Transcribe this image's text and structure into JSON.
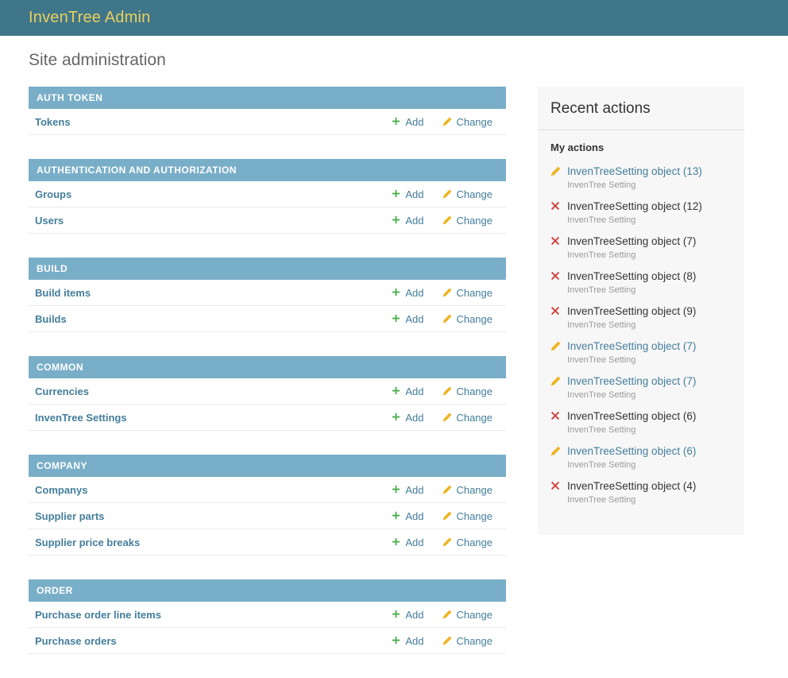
{
  "header": {
    "title": "InvenTree Admin"
  },
  "page": {
    "title": "Site administration"
  },
  "actions": {
    "add_label": "Add",
    "change_label": "Change"
  },
  "icons": {
    "add": "plus-icon",
    "change": "pencil-icon",
    "delete": "x-icon"
  },
  "modules": [
    {
      "title": "AUTH TOKEN",
      "rows": [
        {
          "label": "Tokens"
        }
      ]
    },
    {
      "title": "AUTHENTICATION AND AUTHORIZATION",
      "rows": [
        {
          "label": "Groups"
        },
        {
          "label": "Users"
        }
      ]
    },
    {
      "title": "BUILD",
      "rows": [
        {
          "label": "Build items"
        },
        {
          "label": "Builds"
        }
      ]
    },
    {
      "title": "COMMON",
      "rows": [
        {
          "label": "Currencies"
        },
        {
          "label": "InvenTree Settings"
        }
      ]
    },
    {
      "title": "COMPANY",
      "rows": [
        {
          "label": "Companys"
        },
        {
          "label": "Supplier parts"
        },
        {
          "label": "Supplier price breaks"
        }
      ]
    },
    {
      "title": "ORDER",
      "rows": [
        {
          "label": "Purchase order line items"
        },
        {
          "label": "Purchase orders"
        }
      ]
    }
  ],
  "recent_actions": {
    "title": "Recent actions",
    "subtitle": "My actions",
    "items": [
      {
        "action": "change",
        "label": "InvenTreeSetting object (13)",
        "type": "InvenTree Setting",
        "is_link": true
      },
      {
        "action": "delete",
        "label": "InvenTreeSetting object (12)",
        "type": "InvenTree Setting",
        "is_link": false
      },
      {
        "action": "delete",
        "label": "InvenTreeSetting object (7)",
        "type": "InvenTree Setting",
        "is_link": false
      },
      {
        "action": "delete",
        "label": "InvenTreeSetting object (8)",
        "type": "InvenTree Setting",
        "is_link": false
      },
      {
        "action": "delete",
        "label": "InvenTreeSetting object (9)",
        "type": "InvenTree Setting",
        "is_link": false
      },
      {
        "action": "change",
        "label": "InvenTreeSetting object (7)",
        "type": "InvenTree Setting",
        "is_link": true
      },
      {
        "action": "change",
        "label": "InvenTreeSetting object (7)",
        "type": "InvenTree Setting",
        "is_link": true
      },
      {
        "action": "delete",
        "label": "InvenTreeSetting object (6)",
        "type": "InvenTree Setting",
        "is_link": false
      },
      {
        "action": "change",
        "label": "InvenTreeSetting object (6)",
        "type": "InvenTree Setting",
        "is_link": true
      },
      {
        "action": "delete",
        "label": "InvenTreeSetting object (4)",
        "type": "InvenTree Setting",
        "is_link": false
      }
    ]
  },
  "colors": {
    "header_bg": "#407689",
    "header_title": "#e8d05f",
    "module_caption_bg": "#79aec8",
    "link": "#447e9b",
    "add_icon": "#4cae4c",
    "change_icon": "#edb421",
    "delete_icon": "#ce453f",
    "sidebar_bg": "#f7f7f7"
  }
}
